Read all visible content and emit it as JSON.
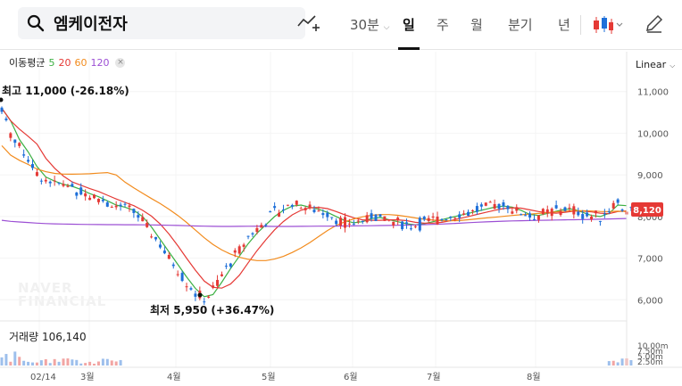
{
  "search": {
    "query": "엠케이전자"
  },
  "periods": [
    {
      "label": "30분",
      "active": false
    },
    {
      "label": "일",
      "active": true
    },
    {
      "label": "주",
      "active": false
    },
    {
      "label": "월",
      "active": false
    },
    {
      "label": "분기",
      "active": false
    },
    {
      "label": "년",
      "active": false
    }
  ],
  "icons": {
    "search": "search-icon",
    "indicator": "indicator-add-icon",
    "chart_type": "candlestick-icon",
    "draw": "pencil-icon"
  },
  "legend": {
    "title": "이동평균",
    "ma": [
      {
        "label": "5",
        "color": "#3cb043"
      },
      {
        "label": "20",
        "color": "#e53935"
      },
      {
        "label": "60",
        "color": "#f28b1d"
      },
      {
        "label": "120",
        "color": "#9c4fd4"
      }
    ]
  },
  "scale_mode": "Linear",
  "price_axis": {
    "ticks": [
      "11,000",
      "10,000",
      "9,000",
      "8,000",
      "7,000",
      "6,000"
    ],
    "current": "8,120"
  },
  "high_marker": {
    "label": "최고",
    "value": "11,000 (-26.18%)"
  },
  "low_marker": {
    "label": "최저",
    "value": "5,950 (+36.47%)"
  },
  "volume": {
    "label": "거래량",
    "value": "106,140",
    "ticks": [
      "10.00m",
      "7.50m",
      "5.00m",
      "2.50m"
    ]
  },
  "date_axis": {
    "labels": [
      "02/14",
      "3월",
      "4월",
      "5월",
      "6월",
      "7월",
      "8월"
    ]
  },
  "watermark": [
    "NAVER",
    "FINANCIAL"
  ],
  "colors": {
    "up": "#e53935",
    "down": "#1e6fd9",
    "current_badge": "#e53935"
  },
  "chart_data": {
    "type": "candlestick",
    "ylim": [
      5600,
      11700
    ],
    "series_trend": [
      10600,
      10000,
      9700,
      9400,
      9000,
      8900,
      8800,
      8750,
      8700,
      8600,
      8500,
      8450,
      8300,
      8250,
      8200,
      8100,
      7900,
      7600,
      7300,
      7000,
      6700,
      6400,
      6150,
      6000,
      6250,
      6600,
      6900,
      7200,
      7500,
      7700,
      7900,
      8100,
      8200,
      8300,
      8250,
      8200,
      8150,
      8050,
      7950,
      7850,
      7850,
      7900,
      8000,
      7950,
      7900,
      7850,
      7800,
      7800,
      7850,
      7900,
      7950,
      8000,
      8050,
      8100,
      8150,
      8200,
      8250,
      8250,
      8200,
      8100,
      8000,
      8050,
      8100,
      8150,
      8200,
      8150,
      8050,
      8000,
      8000,
      8150,
      8400,
      8120
    ]
  }
}
